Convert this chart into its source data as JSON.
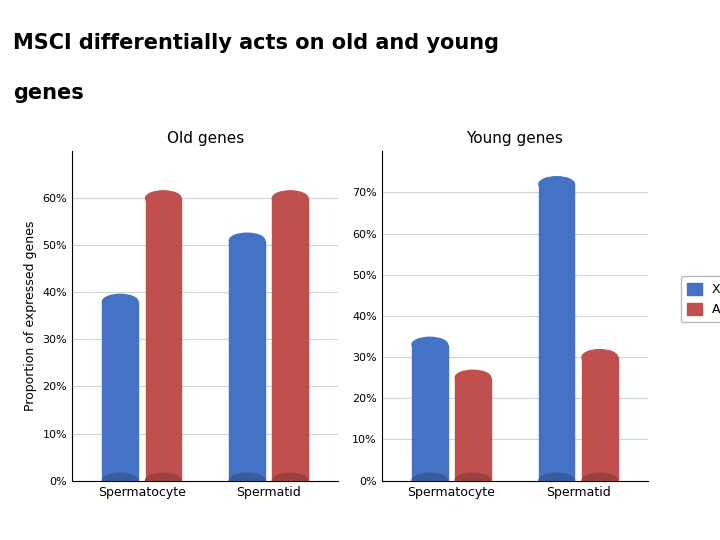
{
  "title_line1": "MSCI differentially acts on old and young",
  "title_line2": "genes",
  "ylabel": "Proportion of expressed genes",
  "old_genes": {
    "title": "Old genes",
    "categories": [
      "Spermatocyte",
      "Spermatid"
    ],
    "X": [
      0.38,
      0.51
    ],
    "A": [
      0.6,
      0.6
    ],
    "ylim": [
      0,
      0.7
    ],
    "yticks": [
      0.0,
      0.1,
      0.2,
      0.3,
      0.4,
      0.5,
      0.6
    ],
    "yticklabels": [
      "0%",
      "10%",
      "20%",
      "30%",
      "40%",
      "50%",
      "60%"
    ]
  },
  "young_genes": {
    "title": "Young genes",
    "categories": [
      "Spermatocyte",
      "Spermatid"
    ],
    "X": [
      0.33,
      0.72
    ],
    "A": [
      0.25,
      0.3
    ],
    "ylim": [
      0,
      0.8
    ],
    "yticks": [
      0.0,
      0.1,
      0.2,
      0.3,
      0.4,
      0.5,
      0.6,
      0.7
    ],
    "yticklabels": [
      "0%",
      "10%",
      "20%",
      "30%",
      "40%",
      "50%",
      "60%",
      "70%"
    ]
  },
  "bar_color_X": "#4472C4",
  "bar_color_A": "#C0504D",
  "legend_labels": [
    "X",
    "A"
  ],
  "title_bg_color": "#E0E0E0",
  "header_bar_color": "#4472C4",
  "background_color": "#FFFFFF"
}
